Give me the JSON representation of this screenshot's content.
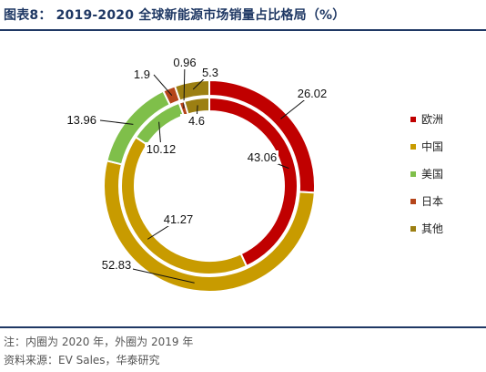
{
  "page": {
    "title": "图表8： 2019-2020 全球新能源市场销量占比格局（%）",
    "notes": [
      "注：内圈为 2020 年，外圈为 2019 年",
      "资料来源：EV Sales，华泰研究"
    ]
  },
  "chart_data": {
    "type": "pie",
    "subtype": "donut",
    "title": "2019-2020 全球新能源市场销量占比格局（%）",
    "categories": [
      "欧洲",
      "中国",
      "美国",
      "日本",
      "其他"
    ],
    "colors": [
      "#c00000",
      "#c89b00",
      "#7fbf4a",
      "#b5451b",
      "#9c7f12"
    ],
    "series": [
      {
        "name": "2019",
        "ring": "outer",
        "values": [
          26.02,
          52.83,
          13.96,
          1.9,
          5.3
        ]
      },
      {
        "name": "2020",
        "ring": "inner",
        "values": [
          43.06,
          41.27,
          10.12,
          0.96,
          4.6
        ]
      }
    ],
    "legend": {
      "position": "right",
      "items": [
        "欧洲",
        "中国",
        "美国",
        "日本",
        "其他"
      ]
    }
  }
}
